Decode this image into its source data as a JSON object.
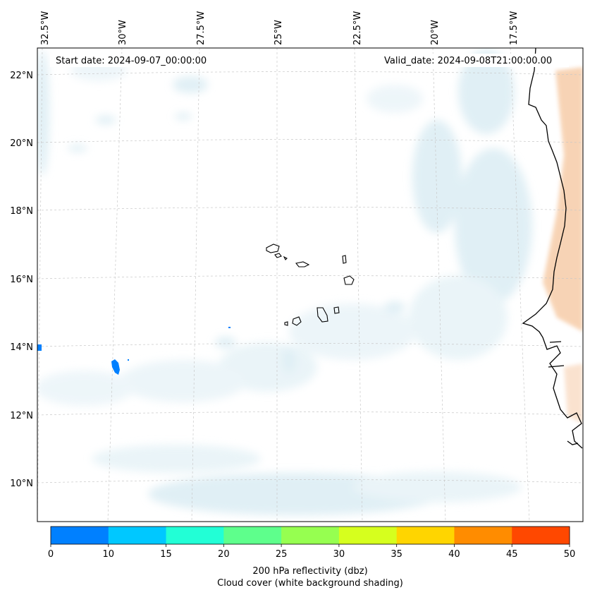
{
  "map": {
    "header": {
      "start_date": "Start date: 2024-09-07_00:00:00",
      "valid_date": "Valid_date: 2024-09-08T21:00:00.00"
    },
    "lon_labels": [
      "32.5°W",
      "30°W",
      "27.5°W",
      "25°W",
      "22.5°W",
      "20°W",
      "17.5°W"
    ],
    "lat_labels": [
      "22°N",
      "20°N",
      "18°N",
      "16°N",
      "14°N",
      "12°N",
      "10°N"
    ],
    "colors": {
      "cloud_shade": "#d6eaf2",
      "land_warm": "#f6c9a3",
      "coastline": "#000000",
      "grid": "#c8c8c8",
      "echo": "#0080ff"
    }
  },
  "colorbar": {
    "ticks": [
      "0",
      "10",
      "15",
      "20",
      "25",
      "30",
      "35",
      "40",
      "45",
      "50"
    ],
    "colors": [
      "#0080ff",
      "#00c8ff",
      "#22ffd6",
      "#5eff8c",
      "#96ff50",
      "#d6ff1e",
      "#ffd500",
      "#ff8c00",
      "#ff4800"
    ],
    "label_line1": "200 hPa reflectivity (dbz)",
    "label_line2": "Cloud cover (white background shading)"
  }
}
